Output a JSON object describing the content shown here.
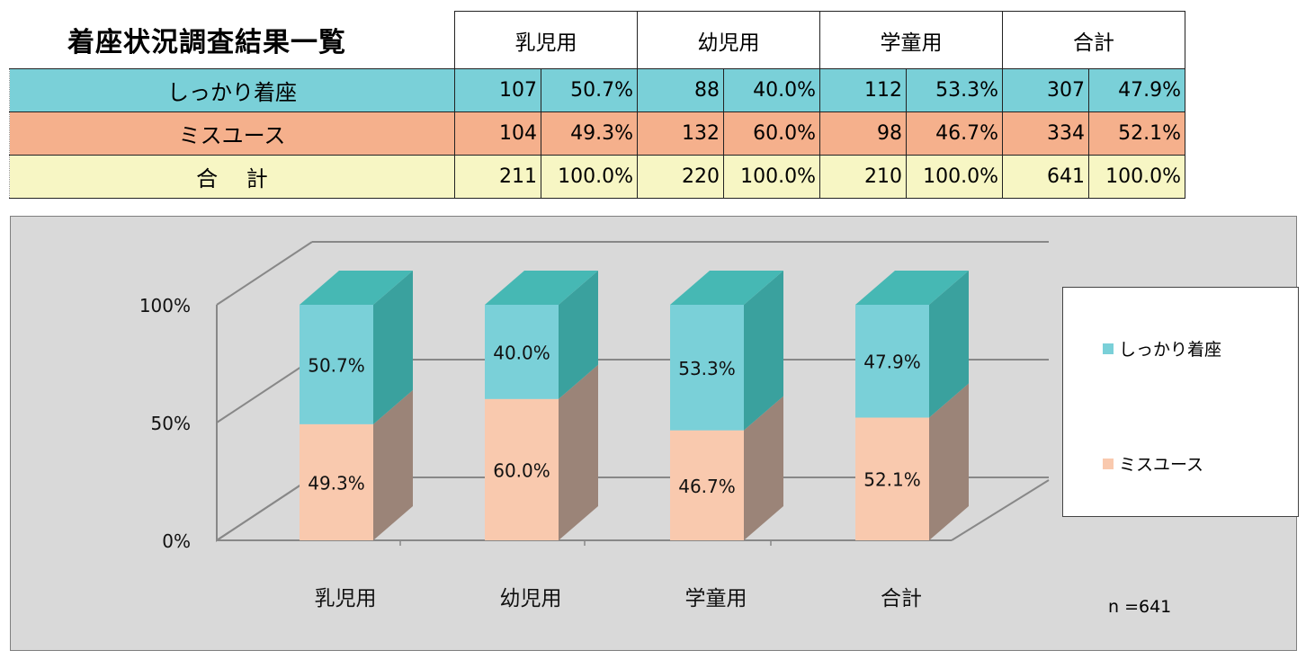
{
  "table": {
    "title": "着座状況調査結果一覧",
    "column_headers": [
      "乳児用",
      "幼児用",
      "学童用",
      "合計"
    ],
    "rows": [
      {
        "label": "しっかり着座",
        "cells": [
          [
            "107",
            "50.7%"
          ],
          [
            "88",
            "40.0%"
          ],
          [
            "112",
            "53.3%"
          ],
          [
            "307",
            "47.9%"
          ]
        ]
      },
      {
        "label": "ミスユース",
        "cells": [
          [
            "104",
            "49.3%"
          ],
          [
            "132",
            "60.0%"
          ],
          [
            "98",
            "46.7%"
          ],
          [
            "334",
            "52.1%"
          ]
        ]
      },
      {
        "label": "合　 計",
        "cells": [
          [
            "211",
            "100.0%"
          ],
          [
            "220",
            "100.0%"
          ],
          [
            "210",
            "100.0%"
          ],
          [
            "641",
            "100.0%"
          ]
        ]
      }
    ]
  },
  "chart_data": {
    "type": "bar",
    "stacked": true,
    "percent": true,
    "three_d": true,
    "categories": [
      "乳児用",
      "幼児用",
      "学童用",
      "合計"
    ],
    "series": [
      {
        "name": "ミスユース",
        "values": [
          49.3,
          60.0,
          46.7,
          52.1
        ],
        "labels": [
          "49.3%",
          "60.0%",
          "46.7%",
          "52.1%"
        ],
        "color": "#f9c9ae"
      },
      {
        "name": "しっかり着座",
        "values": [
          50.7,
          40.0,
          53.3,
          47.9
        ],
        "labels": [
          "50.7%",
          "40.0%",
          "53.3%",
          "47.9%"
        ],
        "color": "#7ad0d8"
      }
    ],
    "ylim": [
      0,
      100
    ],
    "yticks": [
      "0%",
      "50%",
      "100%"
    ],
    "legend": [
      "しっかり着座",
      "ミスユース"
    ],
    "legend_position": "right",
    "annotation": "n =641"
  },
  "colors": {
    "seated_front": "#7ad0d8",
    "seated_top": "#46b8b4",
    "seated_side": "#3aa19e",
    "misuse_front": "#f9c9ae",
    "misuse_side": "#9b8478",
    "panel": "#d9d9d9"
  }
}
